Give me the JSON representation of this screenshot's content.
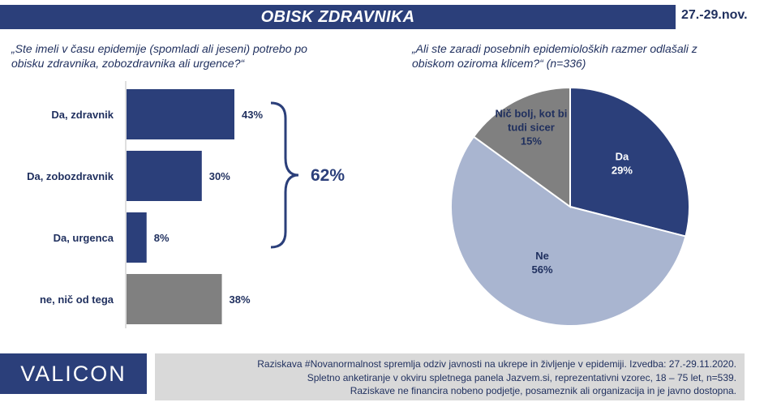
{
  "header": {
    "title": "OBISK ZDRAVNIKA",
    "date": "27.-29.nov."
  },
  "left_question": "„Ste imeli v času epidemije (spomladi ali jeseni) potrebo po obisku zdravnika, zobozdravnika ali urgence?“",
  "right_question": "„Ali ste zaradi posebnih epidemioloških razmer odlašali z obiskom oziroma klicem?“ (n=336)",
  "bracket_label": "62%",
  "colors": {
    "navy": "#2b3f7a",
    "light": "#a9b5d0",
    "gray": "#808080"
  },
  "chart_data": [
    {
      "type": "bar",
      "orientation": "horizontal",
      "categories": [
        "Da, zdravnik",
        "Da, zobozdravnik",
        "Da, urgenca",
        "ne, nič od tega"
      ],
      "values": [
        43,
        30,
        8,
        38
      ],
      "labels": [
        "43%",
        "30%",
        "8%",
        "38%"
      ],
      "colors": [
        "#2b3f7a",
        "#2b3f7a",
        "#2b3f7a",
        "#808080"
      ],
      "xlim": [
        0,
        100
      ],
      "title": "",
      "xlabel": "",
      "ylabel": ""
    },
    {
      "type": "pie",
      "slices": [
        {
          "label": "Da",
          "value": 29,
          "text": "29%",
          "color": "#2b3f7a"
        },
        {
          "label": "Ne",
          "value": 56,
          "text": "56%",
          "color": "#a9b5d0"
        },
        {
          "label": "Nič bolj, kot bi tudi sicer",
          "value": 15,
          "text": "15%",
          "color": "#808080"
        }
      ]
    }
  ],
  "footer": {
    "logo": "VALICON",
    "lines": [
      "Raziskava #Novanormalnost spremlja odziv javnosti na ukrepe in življenje v epidemiji. Izvedba: 27.-29.11.2020.",
      "Spletno anketiranje v okviru spletnega panela Jazvem.si, reprezentativni vzorec, 18 – 75 let, n=539.",
      "Raziskave ne financira nobeno podjetje, posameznik ali organizacija in je javno dostopna."
    ]
  }
}
